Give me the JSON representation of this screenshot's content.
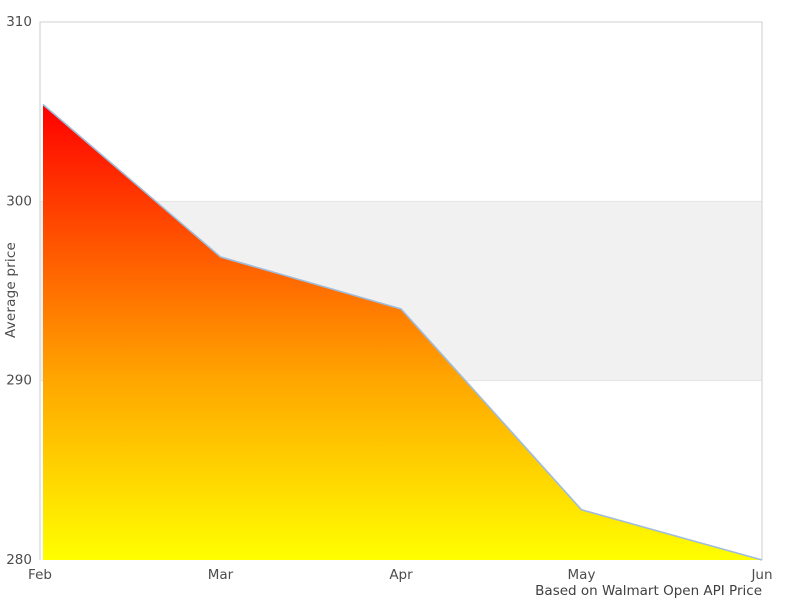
{
  "chart_data": {
    "type": "area",
    "title": "",
    "xlabel": "",
    "ylabel": "Average price",
    "caption": "Based on Walmart Open API Price",
    "x": [
      "Feb",
      "Mar",
      "Apr",
      "May",
      "Jun"
    ],
    "values": [
      305.4,
      296.9,
      294.0,
      282.8,
      280.0
    ],
    "ylim": [
      280,
      310
    ],
    "yticks": [
      280,
      290,
      300,
      310
    ],
    "reference_band": {
      "from": 290,
      "to": 300
    },
    "grid": false,
    "legend": false,
    "colors": {
      "line": "#9fbcdb",
      "area_gradient": [
        {
          "offset": 0.0,
          "color": "#ff0000"
        },
        {
          "offset": 0.6,
          "color": "#ffa500"
        },
        {
          "offset": 1.0,
          "color": "#ffff00"
        }
      ],
      "band_fill": "#f1f1f1",
      "band_edge": "#e4e4e4",
      "axis": "#d9d9d9",
      "tick_text": "#4d4d4d",
      "caption_text": "#404040"
    }
  }
}
